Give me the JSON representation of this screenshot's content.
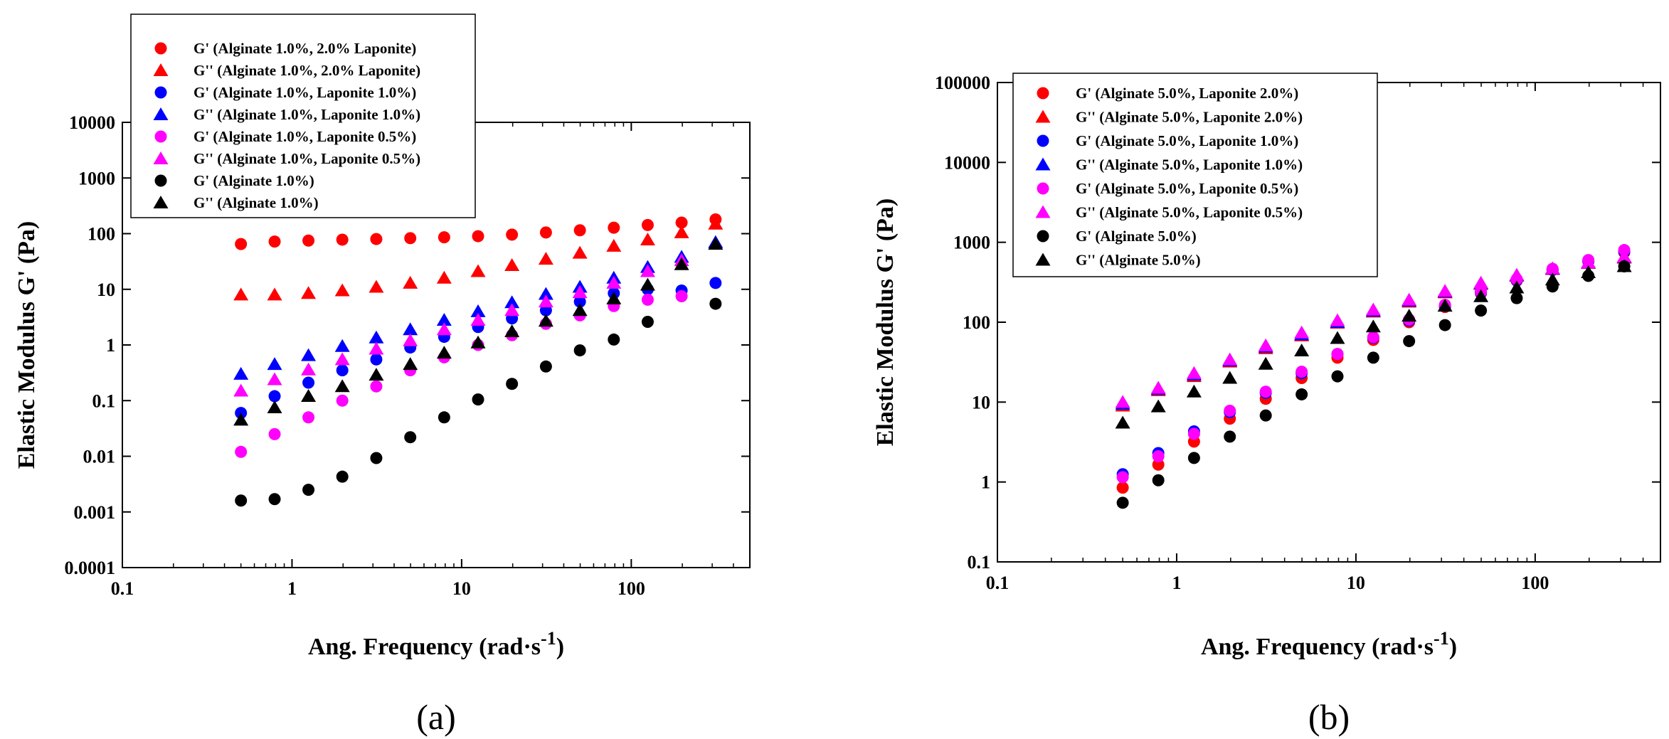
{
  "colors": {
    "red": "#ff0000",
    "blue": "#0000ff",
    "magenta": "#ff00ff",
    "black": "#000000"
  },
  "chart_data": [
    {
      "type": "scatter",
      "panel_label": "(a)",
      "xlabel": "Ang. Frequency (rad·s",
      "xlabel_sup": "-1",
      "xlabel_close": ")",
      "ylabel": "Elastic Modulus G' (Pa)",
      "xscale": "log",
      "yscale": "log",
      "xlim": [
        0.1,
        500
      ],
      "ylim": [
        0.0001,
        10000
      ],
      "xticks": [
        "0.1",
        "1",
        "10",
        "100"
      ],
      "yticks": [
        "0.0001",
        "0.001",
        "0.01",
        "0.1",
        "1",
        "10",
        "100",
        "1000",
        "10000"
      ],
      "legend_position": "top-left",
      "x": [
        0.5,
        0.79,
        1.25,
        1.98,
        3.14,
        4.98,
        7.89,
        12.5,
        19.8,
        31.4,
        49.8,
        78.9,
        125,
        198,
        314
      ],
      "series": [
        {
          "name": "G' (Alginate 1.0%, 2.0% Laponite)",
          "marker": "circle",
          "color": "#ff0000",
          "values": [
            65,
            72,
            75,
            78,
            80,
            83,
            86,
            90,
            96,
            105,
            115,
            128,
            143,
            158,
            180
          ]
        },
        {
          "name": "G'' (Alginate 1.0%, 2.0% Laponite)",
          "marker": "triangle",
          "color": "#ff0000",
          "values": [
            8,
            8,
            8.5,
            9.5,
            11,
            13,
            16,
            21,
            27,
            35,
            45,
            60,
            78,
            105,
            150
          ]
        },
        {
          "name": "G' (Alginate 1.0%, Laponite 1.0%)",
          "marker": "circle",
          "color": "#0000ff",
          "values": [
            0.06,
            0.12,
            0.21,
            0.35,
            0.55,
            0.9,
            1.4,
            2.1,
            3,
            4.2,
            6,
            8.5,
            10,
            9.5,
            13
          ]
        },
        {
          "name": "G'' (Alginate 1.0%, Laponite 1.0%)",
          "marker": "triangle",
          "color": "#0000ff",
          "values": [
            0.3,
            0.45,
            0.65,
            0.95,
            1.35,
            1.9,
            2.8,
            4,
            5.8,
            8.2,
            11,
            16,
            25,
            38,
            70
          ]
        },
        {
          "name": "G' (Alginate 1.0%, Laponite 0.5%)",
          "marker": "circle",
          "color": "#ff00ff",
          "values": [
            0.012,
            0.025,
            0.05,
            0.1,
            0.18,
            0.35,
            0.6,
            1,
            1.5,
            2.4,
            3.4,
            5,
            6.5,
            7.5,
            null
          ]
        },
        {
          "name": "G'' (Alginate 1.0%, Laponite 0.5%)",
          "marker": "triangle",
          "color": "#ff00ff",
          "values": [
            0.15,
            0.24,
            0.36,
            0.55,
            0.85,
            1.2,
            1.9,
            2.8,
            4.2,
            6,
            8.8,
            13,
            21,
            33,
            null
          ]
        },
        {
          "name": "G' (Alginate 1.0%)",
          "marker": "circle",
          "color": "#000000",
          "values": [
            0.0016,
            0.0017,
            0.0025,
            0.0043,
            0.0093,
            0.022,
            0.05,
            0.105,
            0.2,
            0.41,
            0.8,
            1.25,
            2.6,
            null,
            5.5
          ]
        },
        {
          "name": "G'' (Alginate 1.0%)",
          "marker": "triangle",
          "color": "#000000",
          "values": [
            0.045,
            0.075,
            0.12,
            0.18,
            0.29,
            0.45,
            0.72,
            1.1,
            1.75,
            2.7,
            4.2,
            6.8,
            12,
            28,
            65
          ]
        }
      ]
    },
    {
      "type": "scatter",
      "panel_label": "(b)",
      "xlabel": "Ang. Frequency (rad·s",
      "xlabel_sup": "-1",
      "xlabel_close": ")",
      "ylabel": "Elastic Modulus G' (Pa)",
      "xscale": "log",
      "yscale": "log",
      "xlim": [
        0.1,
        500
      ],
      "ylim": [
        0.1,
        100000
      ],
      "xticks": [
        "0.1",
        "1",
        "10",
        "100"
      ],
      "yticks": [
        "0.1",
        "1",
        "10",
        "100",
        "1000",
        "10000",
        "100000"
      ],
      "legend_position": "top-left",
      "x": [
        0.5,
        0.79,
        1.25,
        1.98,
        3.14,
        4.98,
        7.89,
        12.5,
        19.8,
        31.4,
        49.8,
        78.9,
        125,
        198,
        314
      ],
      "series": [
        {
          "name": "G' (Alginate 5.0%, Laponite 2.0%)",
          "marker": "circle",
          "color": "#ff0000",
          "values": [
            0.85,
            1.65,
            3.2,
            6.2,
            11,
            20,
            36,
            60,
            100,
            155,
            230,
            330,
            450,
            580,
            750
          ]
        },
        {
          "name": "G'' (Alginate 5.0%, Laponite 2.0%)",
          "marker": "triangle",
          "color": "#ff0000",
          "values": [
            9,
            14,
            21,
            32,
            47,
            68,
            98,
            135,
            180,
            235,
            300,
            380,
            460,
            550,
            640
          ]
        },
        {
          "name": "G' (Alginate 5.0%, Laponite 1.0%)",
          "marker": "circle",
          "color": "#0000ff",
          "values": [
            1.25,
            2.3,
            4.3,
            7.5,
            13,
            23,
            40,
            64,
            105,
            160,
            235,
            335,
            455,
            580,
            770
          ]
        },
        {
          "name": "G'' (Alginate 5.0%, Laponite 1.0%)",
          "marker": "triangle",
          "color": "#0000ff",
          "values": [
            9.5,
            14.5,
            22,
            33,
            49,
            70,
            100,
            138,
            185,
            240,
            305,
            385,
            465,
            555,
            650
          ]
        },
        {
          "name": "G' (Alginate 5.0%, Laponite 0.5%)",
          "marker": "circle",
          "color": "#ff00ff",
          "values": [
            1.15,
            2.1,
            4,
            7.8,
            13.5,
            24,
            40,
            65,
            108,
            165,
            240,
            345,
            465,
            600,
            800
          ]
        },
        {
          "name": "G'' (Alginate 5.0%, Laponite 0.5%)",
          "marker": "triangle",
          "color": "#ff00ff",
          "values": [
            10,
            15,
            23,
            34,
            51,
            74,
            105,
            143,
            190,
            245,
            310,
            390,
            470,
            560,
            660
          ]
        },
        {
          "name": "G' (Alginate 5.0%)",
          "marker": "circle",
          "color": "#000000",
          "values": [
            0.55,
            1.05,
            2,
            3.7,
            6.8,
            12.5,
            21,
            36,
            58,
            92,
            140,
            200,
            280,
            380,
            500
          ]
        },
        {
          "name": "G'' (Alginate 5.0%)",
          "marker": "triangle",
          "color": "#000000",
          "values": [
            5.5,
            8.8,
            13.5,
            20,
            30,
            44,
            63,
            88,
            120,
            160,
            210,
            270,
            340,
            420,
            500
          ]
        }
      ]
    }
  ]
}
